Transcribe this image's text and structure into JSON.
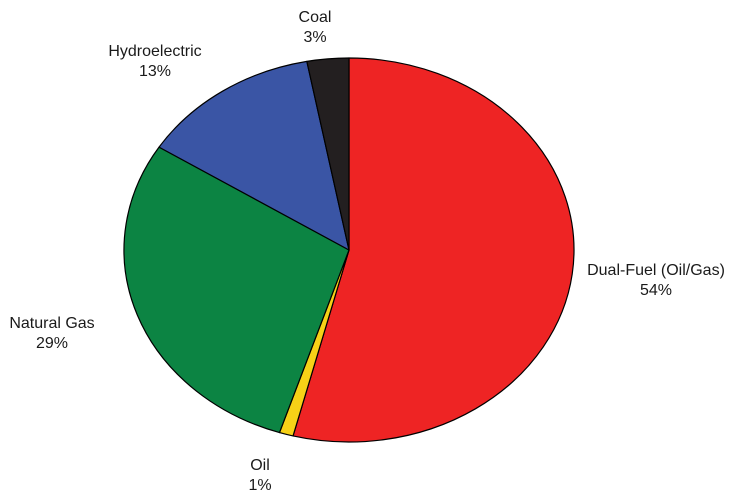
{
  "chart_data": {
    "type": "pie",
    "title": "",
    "start_angle_deg": 0,
    "direction": "clockwise",
    "slices": [
      {
        "label": "Dual-Fuel (Oil/Gas)",
        "value": 54,
        "value_label": "54%",
        "color": "#ee2424"
      },
      {
        "label": "Oil",
        "value": 1,
        "value_label": "1%",
        "color": "#f7d117"
      },
      {
        "label": "Natural Gas",
        "value": 29,
        "value_label": "29%",
        "color": "#0c8443"
      },
      {
        "label": "Hydroelectric",
        "value": 13,
        "value_label": "13%",
        "color": "#3a55a5"
      },
      {
        "label": "Coal",
        "value": 3,
        "value_label": "3%",
        "color": "#231f20"
      }
    ]
  }
}
